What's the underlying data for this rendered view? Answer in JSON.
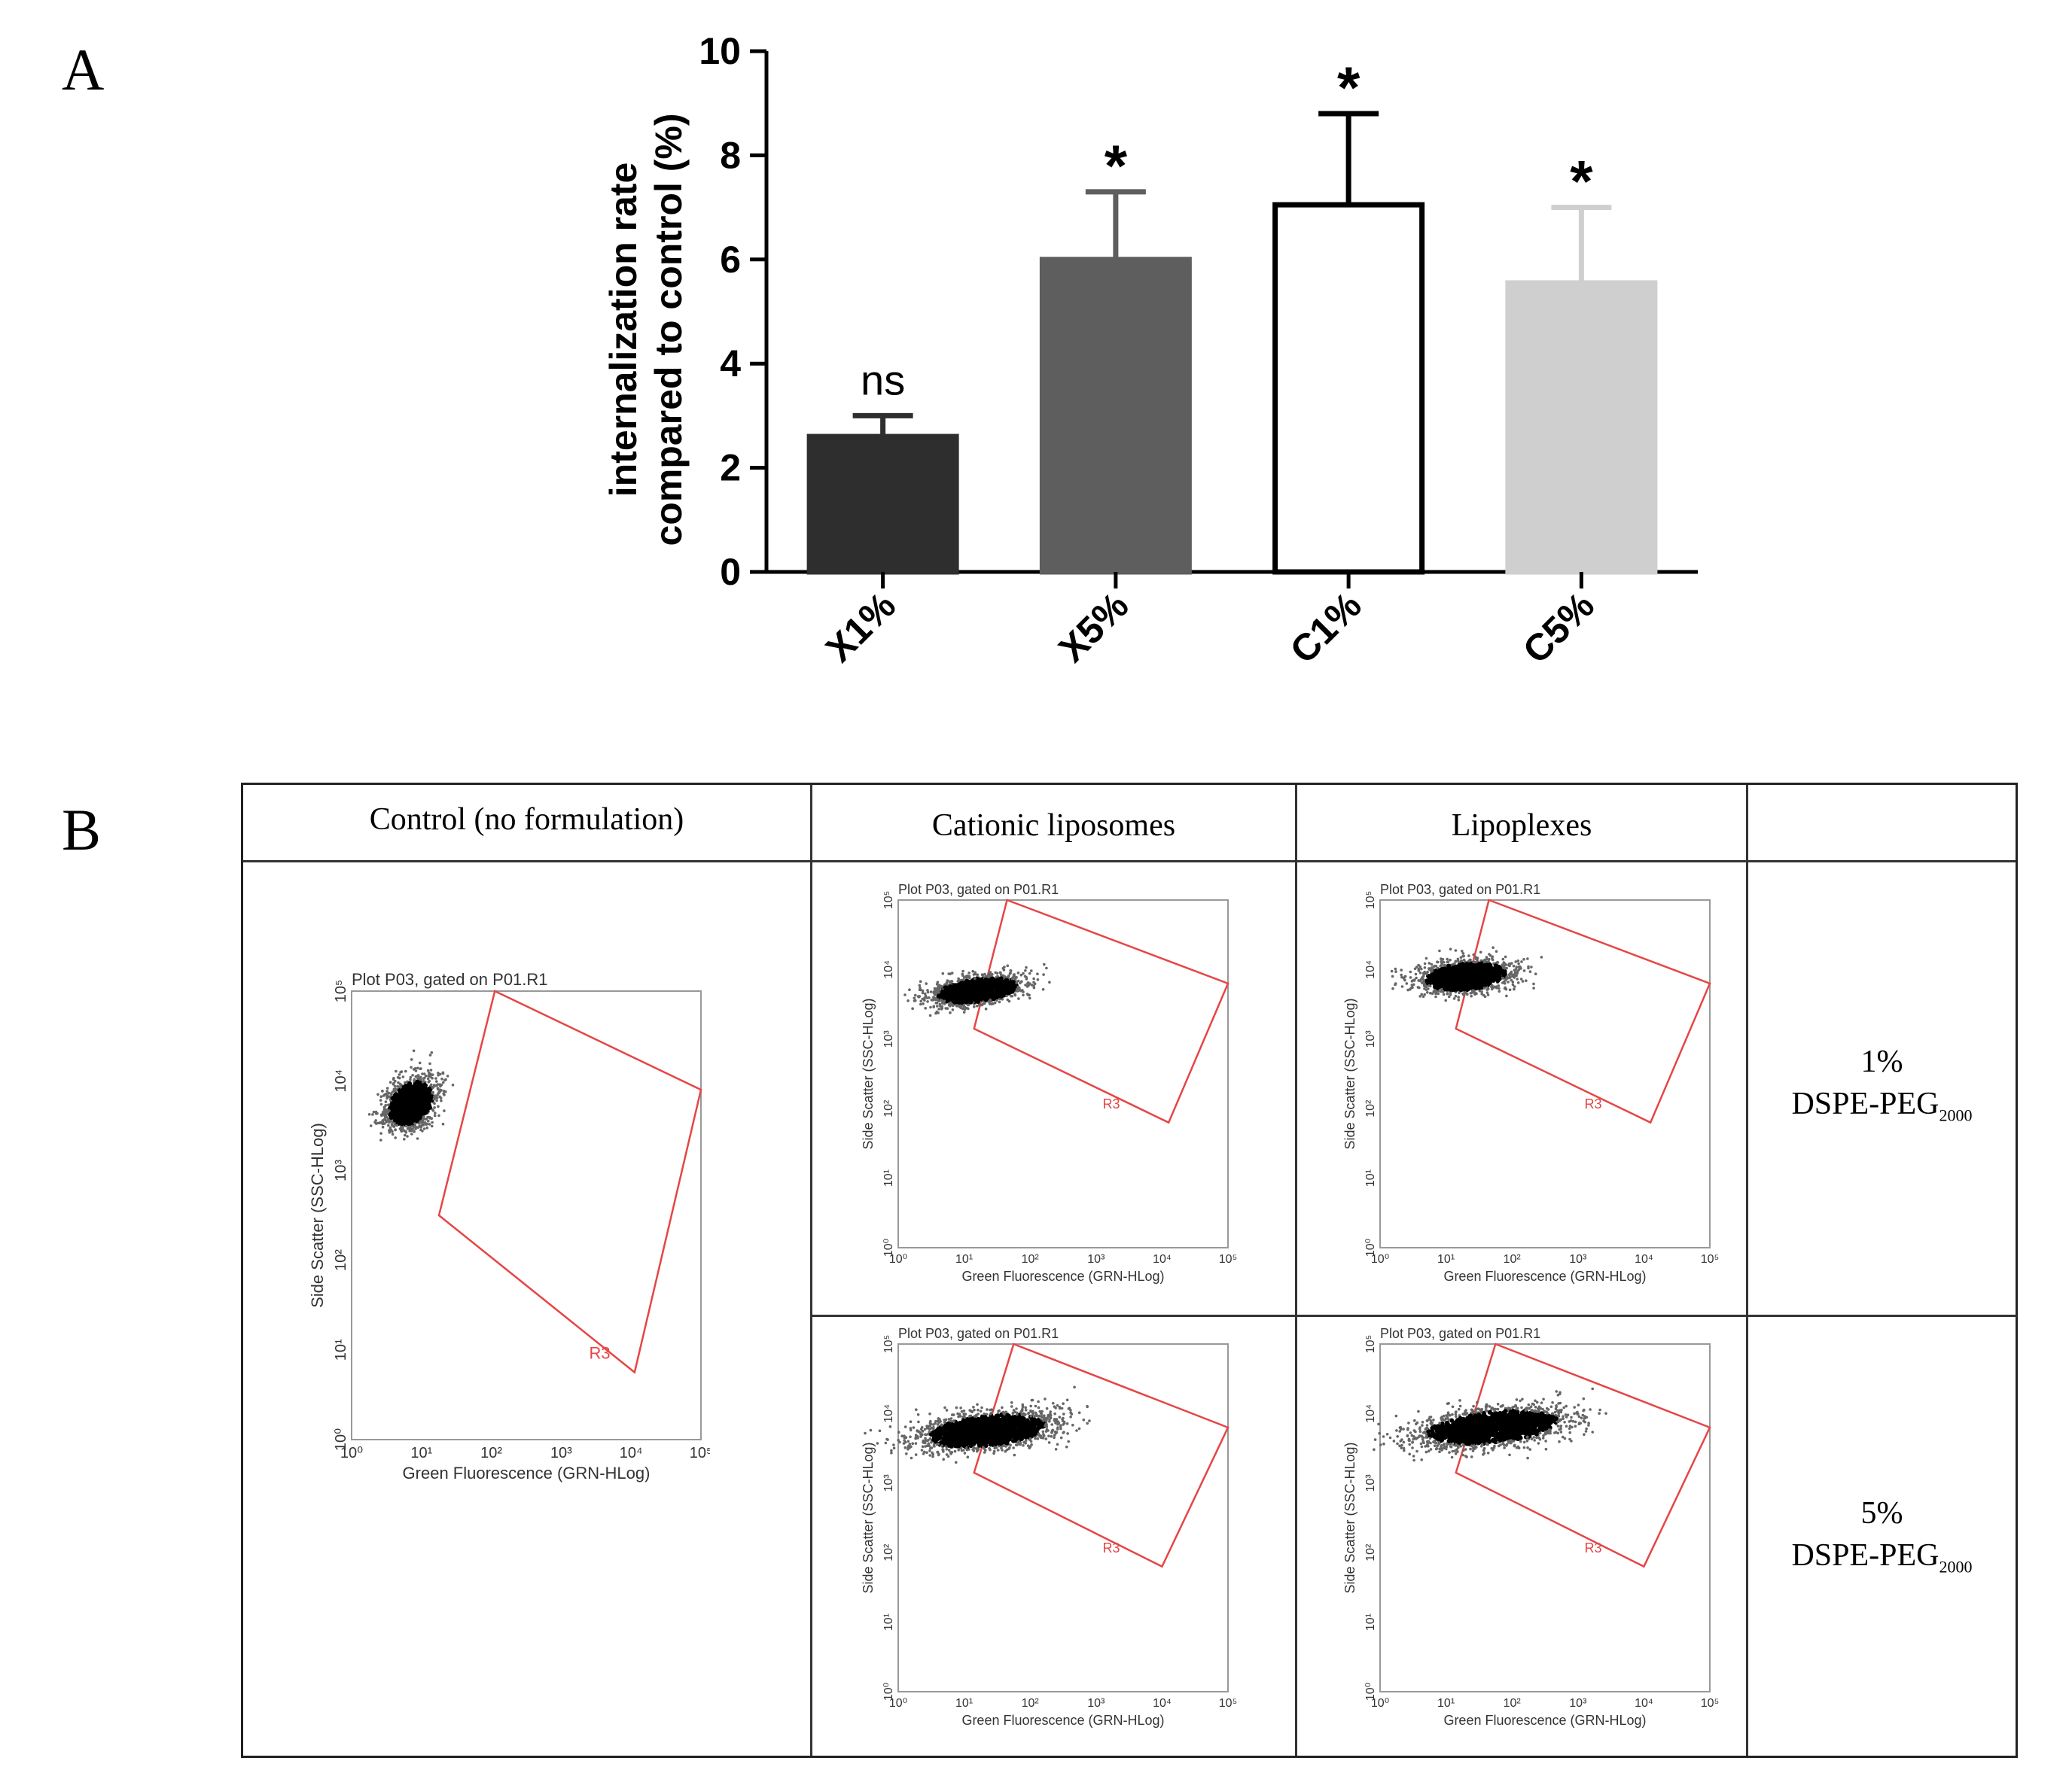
{
  "panels": {
    "a_label": "A",
    "b_label": "B"
  },
  "chart_data": {
    "type": "bar",
    "categories": [
      "X1%",
      "X5%",
      "C1%",
      "C5%"
    ],
    "values": [
      2.6,
      6.0,
      7.05,
      5.55
    ],
    "errors": [
      0.4,
      1.3,
      1.75,
      1.45
    ],
    "significance": [
      "ns",
      "*",
      "*",
      "*"
    ],
    "colors": [
      "#2e2e2e",
      "#5e5e5e",
      "#ffffff",
      "#cfcfcf"
    ],
    "ylabel_line1": "internalization rate",
    "ylabel_line2": "compared to control (%)",
    "ylim": [
      0,
      10
    ],
    "yticks": [
      "0",
      "2",
      "4",
      "6",
      "8",
      "10"
    ],
    "title": "",
    "xlabel": ""
  },
  "table": {
    "headers": [
      "Control (no formulation)",
      "Cationic liposomes",
      "Lipoplexes",
      ""
    ],
    "rows": [
      {
        "label_pct": "1%",
        "label_main": "DSPE-PEG",
        "label_sub": "2000"
      },
      {
        "label_pct": "5%",
        "label_main": "DSPE-PEG",
        "label_sub": "2000"
      }
    ]
  },
  "flow_plot": {
    "title": "Plot P03, gated on P01.R1",
    "xlabel": "Green Fluorescence (GRN-HLog)",
    "ylabel": "Side Scatter (SSC-HLog)",
    "gate_label": "R3",
    "tick_labels": [
      "10⁰",
      "10¹",
      "10²",
      "10³",
      "10⁴",
      "10⁵"
    ],
    "gate_color": "#e64545"
  }
}
